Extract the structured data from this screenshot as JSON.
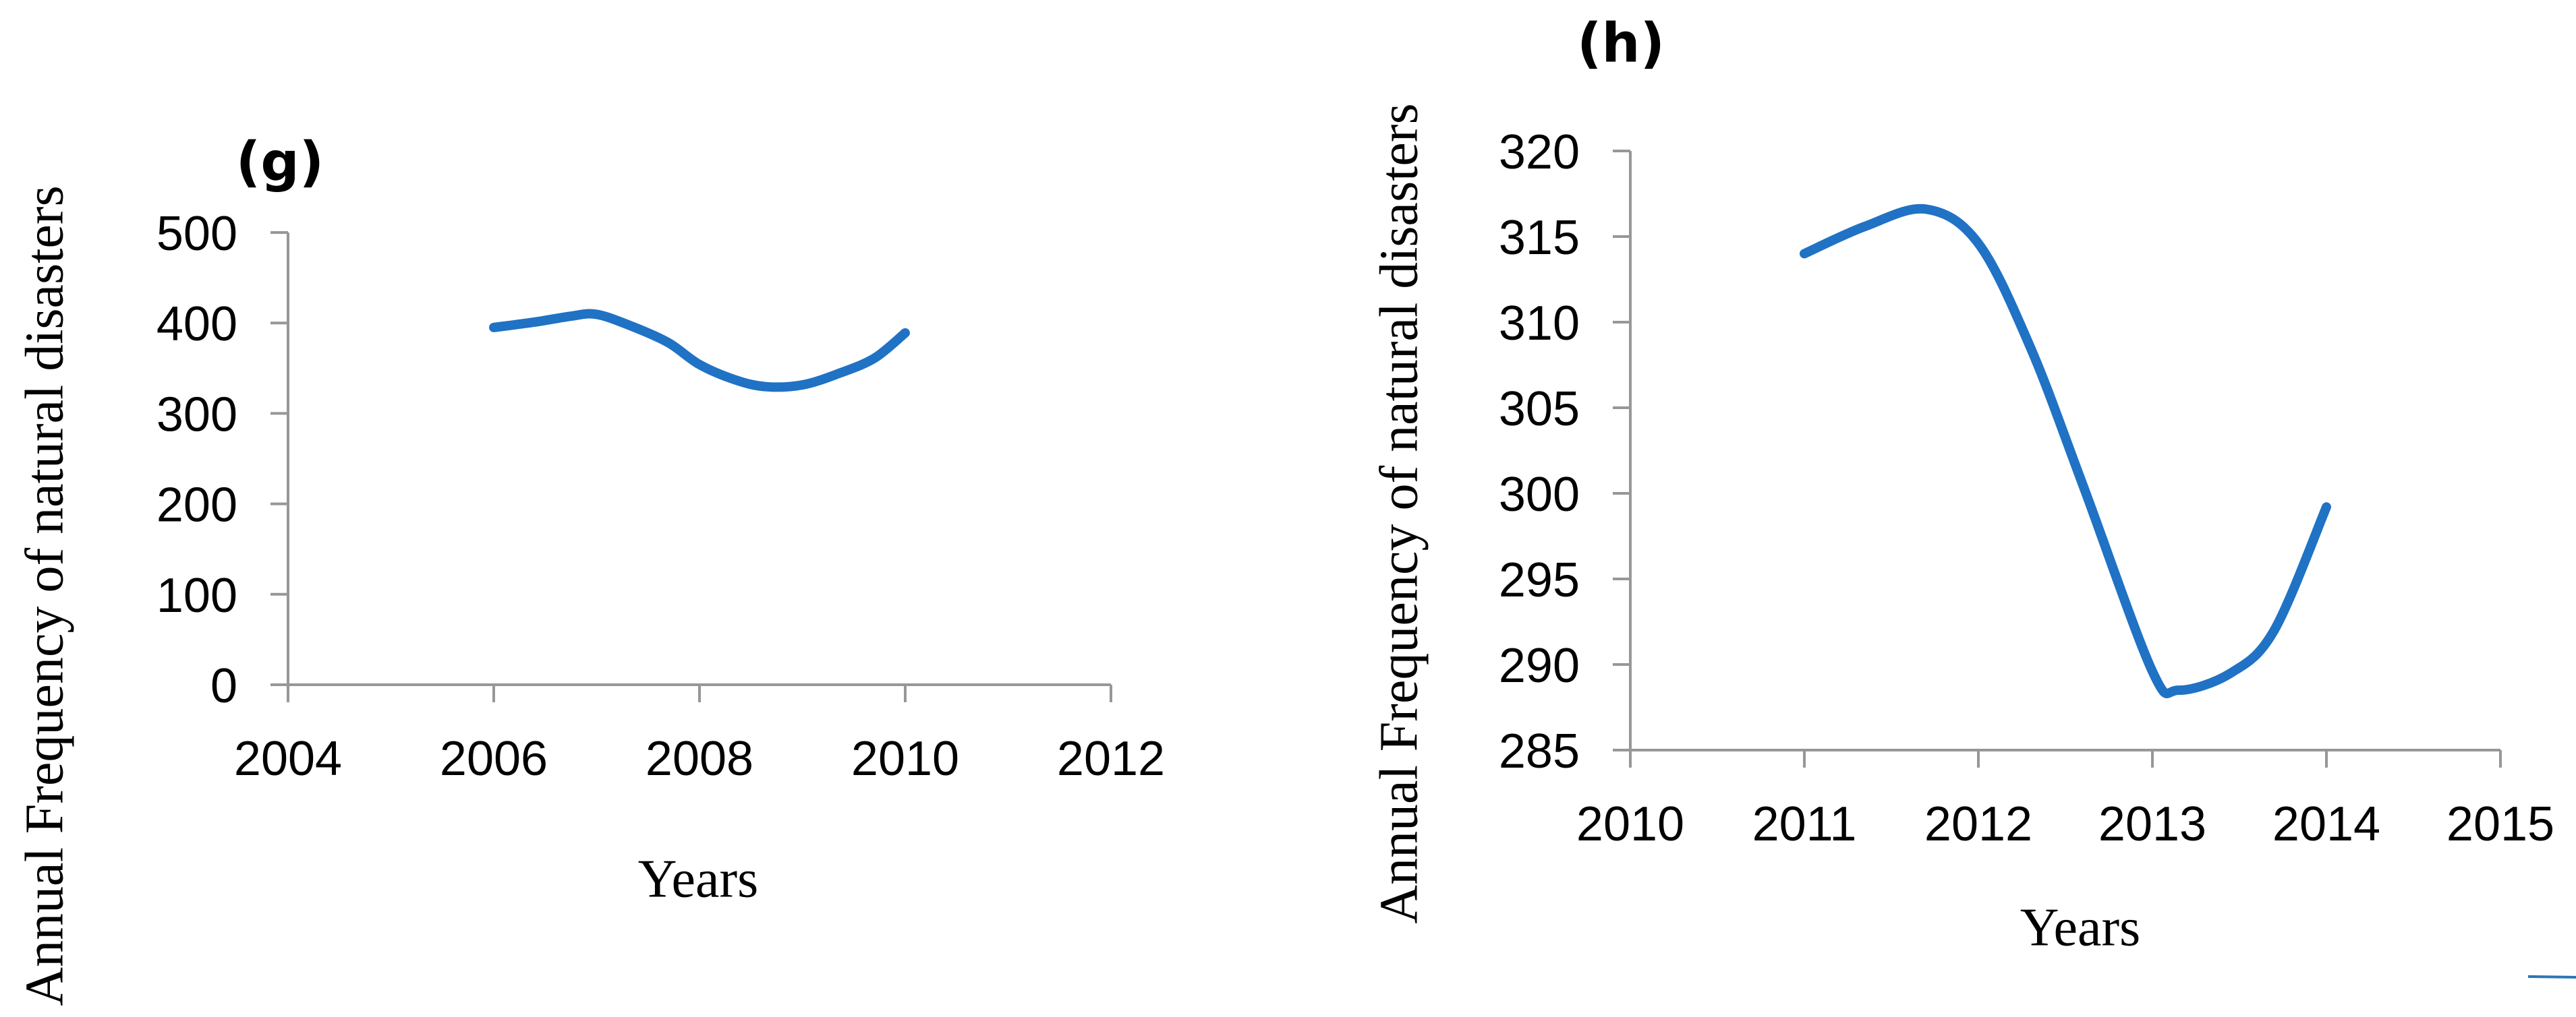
{
  "chart_data": [
    {
      "type": "line",
      "panel_label": "(g)",
      "xlabel": "Years",
      "ylabel": "Annual Frequency of natural disasters",
      "xlim": [
        2004,
        2012
      ],
      "ylim": [
        0,
        500
      ],
      "x_ticks": [
        2004,
        2006,
        2008,
        2010,
        2012
      ],
      "y_ticks": [
        0,
        100,
        200,
        300,
        400,
        500
      ],
      "grid": false,
      "legend_position": "none",
      "line_color": "#2072c4",
      "axis_color": "#979797",
      "text_color": "#000000",
      "series": [
        {
          "name": "annual-frequency-of-natural-disasters-smoothed",
          "x": [
            2006,
            2006.4,
            2006.75,
            2007,
            2007.35,
            2007.7,
            2008,
            2008.35,
            2008.65,
            2009,
            2009.35,
            2009.7,
            2010
          ],
          "y": [
            395,
            401,
            407.5,
            409.5,
            396,
            378,
            354,
            337,
            329.5,
            331.5,
            344,
            361,
            389
          ]
        }
      ],
      "estimated_yearly_values": {
        "x": [
          2006,
          2007,
          2008,
          2009,
          2010
        ],
        "y": [
          395,
          410,
          354,
          331,
          389
        ]
      }
    },
    {
      "type": "line",
      "panel_label": "(h)",
      "xlabel": "Years",
      "ylabel": "Annual Frequency of natural disasters",
      "xlim": [
        2010,
        2015
      ],
      "ylim": [
        285,
        320
      ],
      "x_ticks": [
        2010,
        2011,
        2012,
        2013,
        2014,
        2015
      ],
      "y_ticks": [
        285,
        290,
        295,
        300,
        305,
        310,
        315,
        320
      ],
      "grid": false,
      "legend_position": "none",
      "line_color": "#2072c4",
      "axis_color": "#979797",
      "text_color": "#000000",
      "series": [
        {
          "name": "annual-frequency-of-natural-disasters-smoothed",
          "x": [
            2011,
            2011.35,
            2011.7,
            2012,
            2012.3,
            2012.6,
            2013,
            2013.15,
            2013.45,
            2013.7,
            2014
          ],
          "y": [
            314,
            315.6,
            316.6,
            314.6,
            308.5,
            300.5,
            289.6,
            288.5,
            289.5,
            292,
            299.2
          ]
        }
      ],
      "estimated_yearly_values": {
        "x": [
          2011,
          2012,
          2013,
          2014
        ],
        "y": [
          314,
          315,
          289,
          299
        ]
      }
    }
  ],
  "decor": {
    "stray_line_color": "#2e75b6"
  }
}
